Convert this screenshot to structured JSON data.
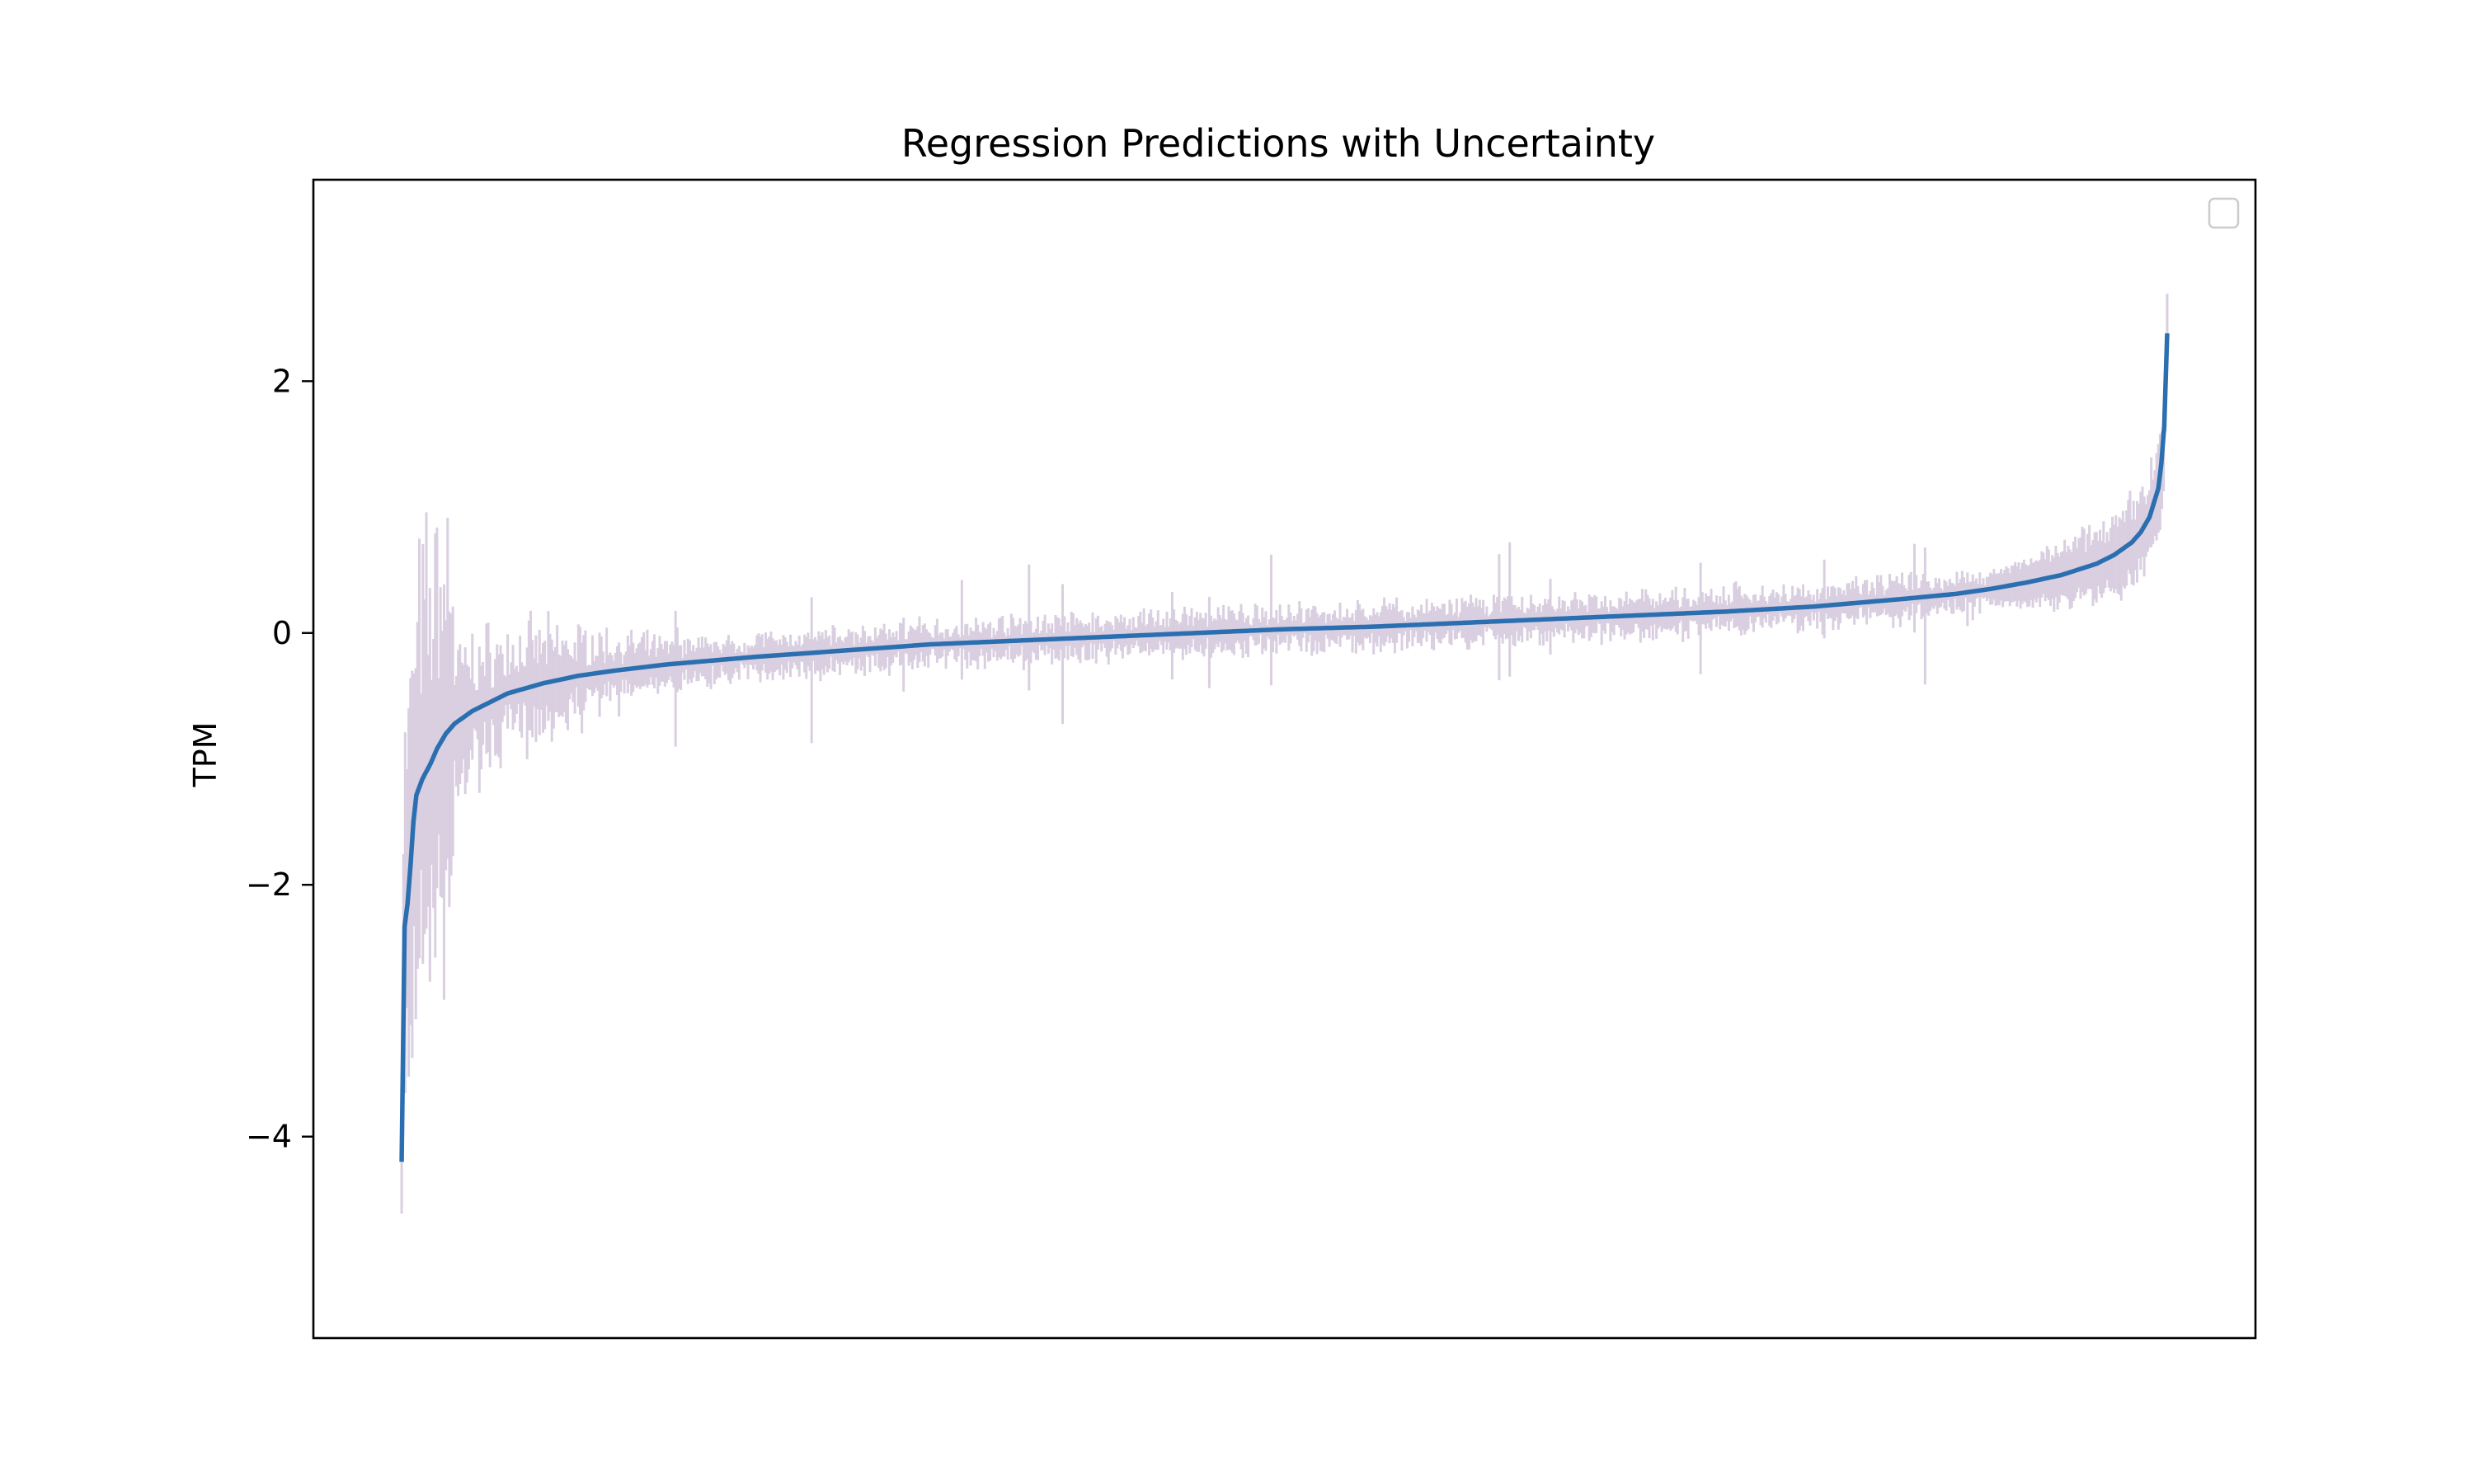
{
  "chart_data": {
    "type": "line",
    "title": "Regression Predictions with Uncertainty",
    "xlabel": "",
    "ylabel": "TPM",
    "ylim": [
      -5.6,
      3.6
    ],
    "xlim": [
      -0.05,
      1.05
    ],
    "x_ticks_visible": false,
    "y_ticks": [
      -4,
      -2,
      0,
      2
    ],
    "y_tick_labels": [
      "−4",
      "−2",
      "0",
      "2"
    ],
    "grid": false,
    "legend": {
      "placement": "upper right",
      "entries": []
    },
    "colors": {
      "line": "#2b6fb0",
      "error_bars": "#d9cfe0",
      "frame": "#000000"
    },
    "series": [
      {
        "role": "prediction_sorted",
        "x": [
          0,
          0.0005,
          0.001,
          0.002,
          0.004,
          0.006,
          0.008,
          0.012,
          0.016,
          0.02,
          0.025,
          0.03,
          0.04,
          0.05,
          0.06,
          0.08,
          0.1,
          0.12,
          0.15,
          0.2,
          0.25,
          0.3,
          0.35,
          0.4,
          0.45,
          0.5,
          0.55,
          0.6,
          0.65,
          0.7,
          0.75,
          0.8,
          0.85,
          0.88,
          0.9,
          0.92,
          0.94,
          0.96,
          0.97,
          0.98,
          0.985,
          0.99,
          0.995,
          0.998,
          1.0
        ],
        "values": [
          -4.2,
          -3.2,
          -2.5,
          -2.25,
          -2.1,
          -1.6,
          -1.3,
          -1.15,
          -1.05,
          -0.92,
          -0.8,
          -0.72,
          -0.62,
          -0.55,
          -0.48,
          -0.4,
          -0.34,
          -0.3,
          -0.25,
          -0.19,
          -0.14,
          -0.09,
          -0.06,
          -0.03,
          0.0,
          0.03,
          0.05,
          0.08,
          0.11,
          0.14,
          0.17,
          0.21,
          0.27,
          0.31,
          0.35,
          0.4,
          0.46,
          0.55,
          0.62,
          0.72,
          0.8,
          0.92,
          1.15,
          1.5,
          2.38
        ]
      }
    ],
    "error_bars": {
      "description": "per-point vertical uncertainty bars (approximate)",
      "approx_halfwidth_left_tail": 1.1,
      "approx_halfwidth_middle": 0.12,
      "approx_halfwidth_right_tail": 0.35,
      "count": 1000
    }
  }
}
